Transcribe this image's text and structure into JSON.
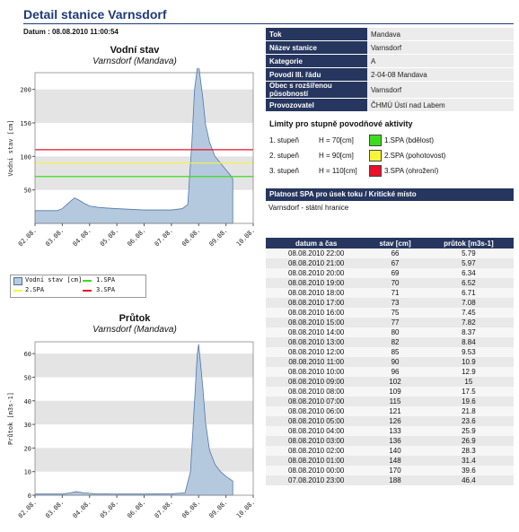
{
  "page": {
    "title": "Detail stanice Varnsdorf",
    "datum": "Datum : 08.08.2010 11:00:54"
  },
  "station": {
    "rows": [
      {
        "key": "Tok",
        "value": "Mandava"
      },
      {
        "key": "Název stanice",
        "value": "Varnsdorf"
      },
      {
        "key": "Kategorie",
        "value": "A"
      },
      {
        "key": "Povodí III. řádu",
        "value": "2-04-08 Mandava"
      },
      {
        "key": "Obec s rozšířenou působností",
        "value": "Varnsdorf"
      },
      {
        "key": "Provozovatel",
        "value": "ČHMÚ Ústí nad Labem"
      }
    ]
  },
  "limits": {
    "heading": "Limity pro stupně povodňové aktivity",
    "rows": [
      {
        "stage": "1. stupeň",
        "h": "H = 70[cm]",
        "label": "1.SPA (bdělost)",
        "color": "#3ddc1e"
      },
      {
        "stage": "2. stupeň",
        "h": "H = 90[cm]",
        "label": "2.SPA (pohotovost)",
        "color": "#f5f53a"
      },
      {
        "stage": "3. stupeň",
        "h": "H = 110[cm]",
        "label": "3.SPA (ohrožení)",
        "color": "#e8102a"
      }
    ]
  },
  "spa": {
    "heading": "Platnost SPA pro úsek toku / Kritické místo",
    "text": "Varnsdorf - státní hranice"
  },
  "measurements": {
    "headers": [
      "datum a čas",
      "stav [cm]",
      "průtok [m3s-1]"
    ],
    "rows": [
      [
        "08.08.2010 22:00",
        "66",
        "5.79"
      ],
      [
        "08.08.2010 21:00",
        "67",
        "5.97"
      ],
      [
        "08.08.2010 20:00",
        "69",
        "6.34"
      ],
      [
        "08.08.2010 19:00",
        "70",
        "6.52"
      ],
      [
        "08.08.2010 18:00",
        "71",
        "6.71"
      ],
      [
        "08.08.2010 17:00",
        "73",
        "7.08"
      ],
      [
        "08.08.2010 16:00",
        "75",
        "7.45"
      ],
      [
        "08.08.2010 15:00",
        "77",
        "7.82"
      ],
      [
        "08.08.2010 14:00",
        "80",
        "8.37"
      ],
      [
        "08.08.2010 13:00",
        "82",
        "8.84"
      ],
      [
        "08.08.2010 12:00",
        "85",
        "9.53"
      ],
      [
        "08.08.2010 11:00",
        "90",
        "10.9"
      ],
      [
        "08.08.2010 10:00",
        "96",
        "12.9"
      ],
      [
        "08.08.2010 09:00",
        "102",
        "15"
      ],
      [
        "08.08.2010 08:00",
        "109",
        "17.5"
      ],
      [
        "08.08.2010 07:00",
        "115",
        "19.6"
      ],
      [
        "08.08.2010 06:00",
        "121",
        "21.8"
      ],
      [
        "08.08.2010 05:00",
        "126",
        "23.6"
      ],
      [
        "08.08.2010 04:00",
        "133",
        "25.9"
      ],
      [
        "08.08.2010 03:00",
        "136",
        "26.9"
      ],
      [
        "08.08.2010 02:00",
        "140",
        "28.3"
      ],
      [
        "08.08.2010 01:00",
        "148",
        "31.4"
      ],
      [
        "08.08.2010 00:00",
        "170",
        "39.6"
      ],
      [
        "07.08.2010 23:00",
        "188",
        "46.4"
      ]
    ]
  },
  "chart_data": [
    {
      "type": "area",
      "title": "Vodní stav",
      "subtitle": "Varnsdorf (Mandava)",
      "ylabel": "Vodní stav [cm]",
      "xlabel": "",
      "ylim": [
        0,
        225
      ],
      "yticks": [
        50,
        100,
        150,
        200
      ],
      "xticks": [
        "02.08.",
        "03.08.",
        "04.08.",
        "05.08.",
        "06.08.",
        "07.08.",
        "08.08.",
        "09.08.",
        "10.08."
      ],
      "xlim": [
        0,
        8
      ],
      "grid": true,
      "series": [
        {
          "name": "Vodní stav [cm]",
          "x": [
            0,
            0.3,
            0.8,
            1.0,
            1.3,
            1.45,
            1.6,
            1.8,
            2.0,
            2.3,
            2.6,
            3.0,
            3.5,
            4.0,
            4.5,
            5.0,
            5.4,
            5.6,
            5.75,
            5.85,
            5.95,
            6.0,
            6.05,
            6.15,
            6.25,
            6.4,
            6.6,
            6.8,
            7.0,
            7.2,
            7.25
          ],
          "values": [
            19,
            19,
            19,
            22,
            33,
            38,
            35,
            30,
            26,
            24,
            23,
            22,
            21,
            20,
            20,
            20,
            22,
            28,
            120,
            200,
            232,
            237,
            220,
            188,
            148,
            121,
            100,
            90,
            80,
            70,
            66
          ]
        }
      ],
      "thresholds": [
        {
          "name": "1.SPA",
          "value": 70,
          "color": "#3ddc1e"
        },
        {
          "name": "2.SPA",
          "value": 90,
          "color": "#f5f53a"
        },
        {
          "name": "3.SPA",
          "value": 110,
          "color": "#e8102a"
        }
      ],
      "legend": [
        "Vodní stav [cm]",
        "1.SPA",
        "2.SPA",
        "3.SPA"
      ]
    },
    {
      "type": "area",
      "title": "Průtok",
      "subtitle": "Varnsdorf (Mandava)",
      "ylabel": "Průtok [m3s-1]",
      "xlabel": "",
      "ylim": [
        0,
        65
      ],
      "yticks": [
        0,
        10,
        20,
        30,
        40,
        50,
        60
      ],
      "xticks": [
        "02.08.",
        "03.08.",
        "04.08.",
        "05.08.",
        "06.08.",
        "07.08.",
        "08.08.",
        "09.08.",
        "10.08."
      ],
      "xlim": [
        0,
        8
      ],
      "grid": true,
      "series": [
        {
          "name": "Průtok [m3s-1]",
          "x": [
            0,
            1.0,
            1.3,
            1.5,
            1.8,
            2.2,
            3.0,
            4.0,
            5.0,
            5.5,
            5.7,
            5.85,
            5.95,
            6.0,
            6.05,
            6.15,
            6.25,
            6.4,
            6.6,
            6.8,
            7.0,
            7.25
          ],
          "values": [
            0.5,
            0.5,
            1.0,
            1.5,
            1.0,
            0.6,
            0.5,
            0.5,
            0.6,
            1.0,
            10,
            40,
            60,
            64,
            58,
            46,
            31,
            19,
            13,
            10,
            8,
            6
          ]
        }
      ]
    }
  ]
}
